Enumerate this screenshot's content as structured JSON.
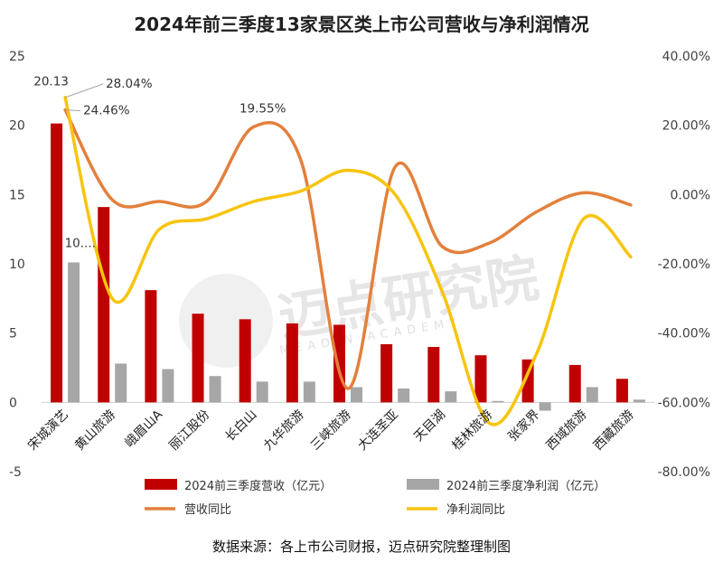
{
  "title": "2024年前三季度13家景区类上市公司营收与净利润情况",
  "source_note": "数据来源：各上市公司财报，迈点研究院整理制图",
  "watermark": {
    "main": "迈点研究院",
    "sub": "MEADIN ACADEMY"
  },
  "colors": {
    "revenue": "#c00000",
    "profit": "#a6a6a6",
    "revenue_yoy": "#e3803c",
    "profit_yoy": "#f7c40e"
  },
  "chart_data": {
    "type": "bar+line",
    "title": "2024年前三季度13家景区类上市公司营收与净利润情况",
    "categories": [
      "宋城演艺",
      "黄山旅游",
      "峨眉山A",
      "丽江股份",
      "长白山",
      "九华旅游",
      "三峡旅游",
      "大连圣亚",
      "天目湖",
      "桂林旅游",
      "张家界",
      "西域旅游",
      "西藏旅游"
    ],
    "left_axis": {
      "ylim": [
        -5,
        25
      ],
      "ticks": [
        "-5",
        "0",
        "5",
        "10",
        "15",
        "20",
        "25"
      ]
    },
    "right_axis": {
      "ylim": [
        -80,
        40
      ],
      "ticks": [
        "-80.00%",
        "-60.00%",
        "-40.00%",
        "-20.00%",
        "0.00%",
        "20.00%",
        "40.00%"
      ]
    },
    "series": [
      {
        "name": "2024前三季度营收（亿元）",
        "type": "bar",
        "axis": "left",
        "values": [
          20.13,
          14.1,
          8.1,
          6.4,
          6.0,
          5.7,
          5.6,
          4.2,
          4.0,
          3.4,
          3.1,
          2.7,
          1.7
        ]
      },
      {
        "name": "2024前三季度净利润（亿元）",
        "type": "bar",
        "axis": "left",
        "values": [
          10.1,
          2.8,
          2.4,
          1.9,
          1.5,
          1.5,
          1.1,
          1.0,
          0.8,
          0.1,
          -0.6,
          1.1,
          0.2
        ]
      },
      {
        "name": "营收同比",
        "type": "line",
        "axis": "right",
        "values": [
          24.46,
          -1.5,
          -2.0,
          -2.0,
          19.55,
          10.0,
          -56.0,
          8.0,
          -15.0,
          -14.0,
          -5.0,
          0.5,
          -3.0
        ]
      },
      {
        "name": "净利润同比",
        "type": "line",
        "axis": "right",
        "values": [
          28.04,
          -30.0,
          -10.0,
          -7.0,
          -2.0,
          1.0,
          7.0,
          0.0,
          -28.0,
          -66.0,
          -46.0,
          -7.0,
          -18.0
        ]
      }
    ],
    "data_labels": [
      {
        "text": "20.13",
        "series": 0,
        "index": 0
      },
      {
        "text": "10....",
        "series": 1,
        "index": 0
      },
      {
        "text": "24.46%",
        "series": 2,
        "index": 0
      },
      {
        "text": "28.04%",
        "series": 3,
        "index": 0
      },
      {
        "text": "19.55%",
        "series": 2,
        "index": 4
      }
    ]
  }
}
